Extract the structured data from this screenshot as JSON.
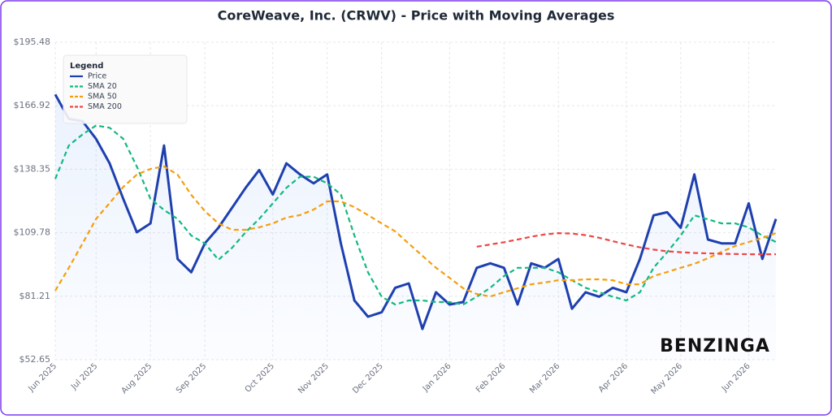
{
  "chart_data": {
    "type": "line",
    "title": "CoreWeave, Inc. (CRWV) - Price with Moving Averages",
    "watermark": "BENZINGA",
    "legend_title": "Legend",
    "legend": "upper left",
    "grid": true,
    "categories": [
      "Jun 2025",
      null,
      null,
      "Jul 2025",
      null,
      null,
      null,
      "Aug 2025",
      null,
      null,
      null,
      "Sep 2025",
      null,
      null,
      null,
      null,
      "Oct 2025",
      null,
      null,
      null,
      "Nov 2025",
      null,
      null,
      null,
      "Dec 2025",
      null,
      null,
      null,
      null,
      "Jan 2026",
      null,
      null,
      null,
      "Feb 2026",
      null,
      null,
      null,
      "Mar 2026",
      null,
      null,
      null,
      null,
      "Apr 2026",
      null,
      null,
      null,
      "May 2026",
      null,
      null,
      null,
      null,
      "Jun 2026",
      null,
      null
    ],
    "ylim": [
      52.65,
      195.48
    ],
    "yticks": [
      {
        "value": 52.65,
        "label": "$52.65"
      },
      {
        "value": 81.21,
        "label": "$81.21"
      },
      {
        "value": 109.78,
        "label": "$109.78"
      },
      {
        "value": 138.35,
        "label": "$138.35"
      },
      {
        "value": 166.92,
        "label": "$166.92"
      },
      {
        "value": 195.48,
        "label": "$195.48"
      }
    ],
    "series": [
      {
        "name": "Price",
        "color": "#1e40af",
        "values": [
          172,
          161,
          160,
          152,
          141,
          125,
          110,
          114,
          149,
          98,
          92,
          105,
          112,
          121,
          130,
          138,
          127,
          141,
          136,
          132,
          136,
          105,
          79.3,
          72,
          74,
          85,
          87,
          66.5,
          83,
          77.5,
          78.6,
          94,
          96,
          94,
          77.5,
          96,
          94,
          98,
          75.6,
          83,
          81,
          85,
          83,
          98,
          117.6,
          119,
          112,
          136,
          106.7,
          105,
          105,
          123,
          98,
          116
        ]
      },
      {
        "name": "SMA 20",
        "color": "#10b981",
        "values": [
          134,
          149,
          154,
          158,
          157,
          152,
          139.6,
          125,
          120,
          116,
          108.5,
          105,
          97.6,
          103,
          110,
          116,
          123,
          130,
          135,
          135,
          132,
          127,
          108.5,
          92,
          81,
          77.5,
          79.3,
          79.3,
          78.6,
          78.6,
          77.5,
          81,
          85,
          90.3,
          94,
          94,
          94,
          92,
          88.4,
          85,
          83,
          81,
          79.3,
          83,
          94,
          101,
          108.5,
          117.6,
          115.8,
          114,
          114,
          112.2,
          108.5,
          105.6
        ]
      },
      {
        "name": "SMA 50",
        "color": "#f59e0b",
        "values": [
          83.7,
          94,
          104.9,
          116,
          123.1,
          130.4,
          135.9,
          138.5,
          139.6,
          135.9,
          126.8,
          119.5,
          114,
          111.1,
          111.1,
          112.2,
          114,
          116.6,
          117.7,
          120.2,
          123.9,
          123.9,
          121.3,
          117.7,
          114,
          110.4,
          104.9,
          99.4,
          94,
          89.5,
          84.8,
          82.2,
          81.1,
          83,
          84.8,
          86.6,
          87.4,
          88.4,
          88.4,
          88.8,
          88.8,
          88.4,
          86.6,
          86.6,
          90.3,
          92.1,
          94,
          95.8,
          98.3,
          101.2,
          103.8,
          105.6,
          107.4,
          109.6
        ]
      },
      {
        "name": "SMA 200",
        "color": "#ef4444",
        "values": [
          null,
          null,
          null,
          null,
          null,
          null,
          null,
          null,
          null,
          null,
          null,
          null,
          null,
          null,
          null,
          null,
          null,
          null,
          null,
          null,
          null,
          null,
          null,
          null,
          null,
          null,
          null,
          null,
          null,
          null,
          null,
          103.5,
          104.5,
          105.5,
          106.7,
          108,
          109,
          109.6,
          109.4,
          108.7,
          107.5,
          106,
          104.5,
          103.2,
          102.2,
          101.4,
          101,
          100.7,
          100.5,
          100.3,
          100.2,
          100.1,
          100.1,
          100.1
        ]
      }
    ]
  }
}
